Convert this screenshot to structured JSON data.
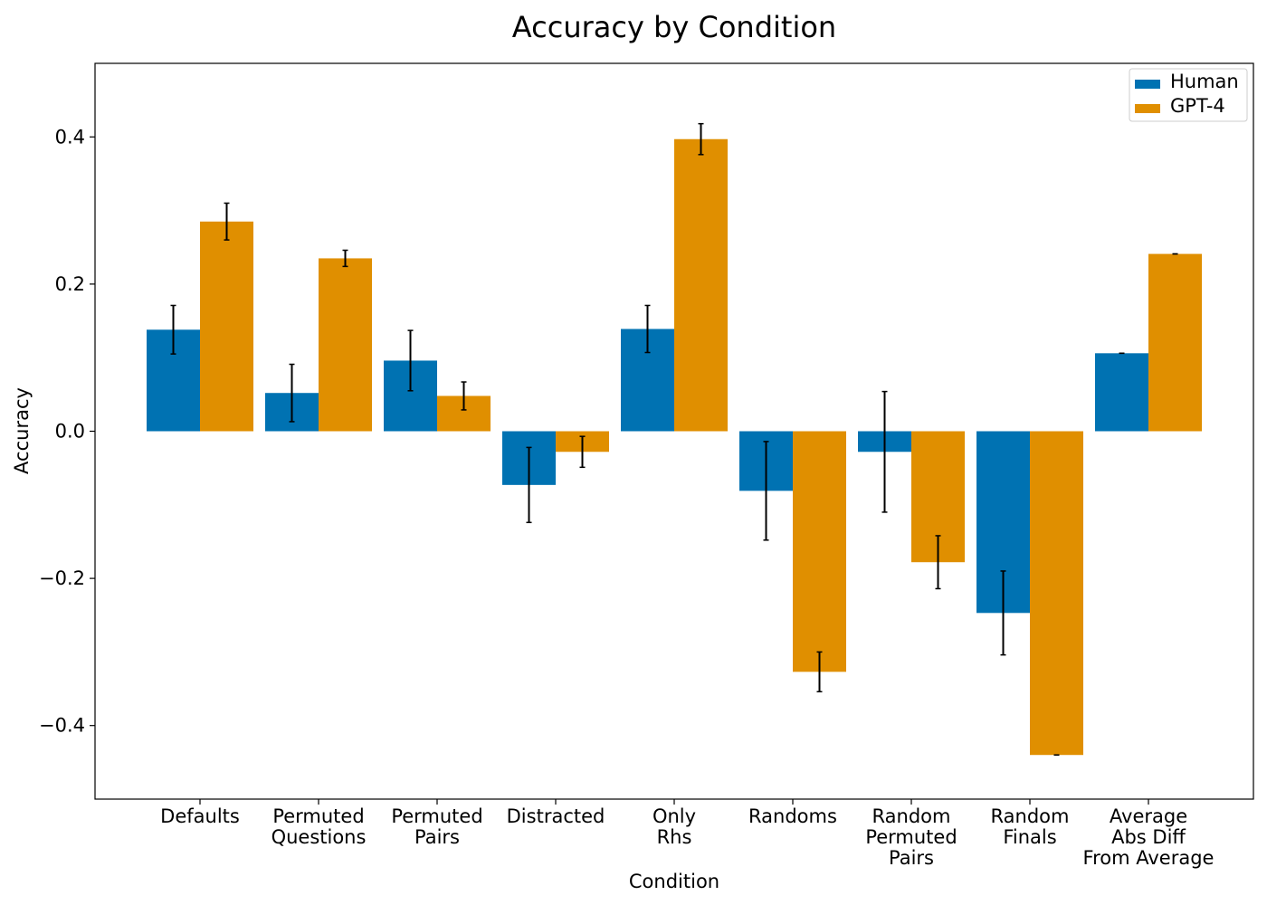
{
  "chart_data": {
    "type": "bar",
    "title": "Accuracy by Condition",
    "xlabel": "Condition",
    "ylabel": "Accuracy",
    "ylim": [
      -0.5,
      0.5
    ],
    "yticks": [
      -0.4,
      -0.2,
      0.0,
      0.2,
      0.4
    ],
    "ytick_labels": [
      "−0.4",
      "−0.2",
      "0.0",
      "0.2",
      "0.4"
    ],
    "grid": false,
    "legend_position": "top-right",
    "categories": [
      [
        "Defaults"
      ],
      [
        "Permuted",
        "Questions"
      ],
      [
        "Permuted",
        "Pairs"
      ],
      [
        "Distracted"
      ],
      [
        "Only",
        "Rhs"
      ],
      [
        "Randoms"
      ],
      [
        "Random",
        "Permuted",
        "Pairs"
      ],
      [
        "Random",
        "Finals"
      ],
      [
        "Average",
        "Abs Diff",
        "From Average"
      ]
    ],
    "series": [
      {
        "name": "Human",
        "color": "#0072b2",
        "values": [
          0.138,
          0.052,
          0.096,
          -0.073,
          0.139,
          -0.081,
          -0.028,
          -0.247,
          0.106
        ],
        "errors": [
          0.033,
          0.039,
          0.041,
          0.051,
          0.032,
          0.067,
          0.082,
          0.057,
          0.0
        ]
      },
      {
        "name": "GPT-4",
        "color": "#e08f00",
        "values": [
          0.285,
          0.235,
          0.048,
          -0.028,
          0.397,
          -0.327,
          -0.178,
          -0.44,
          0.241
        ],
        "errors": [
          0.025,
          0.011,
          0.019,
          0.021,
          0.021,
          0.027,
          0.036,
          0.0,
          0.0
        ]
      }
    ]
  }
}
